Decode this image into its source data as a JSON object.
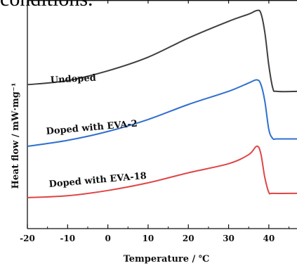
{
  "header_fragment": "conditions.",
  "chart_data": {
    "type": "line",
    "title": "",
    "xlabel": "Temperature / ℃",
    "ylabel": "Heat flow / mW·mg⁻¹",
    "xlim": [
      -20,
      47
    ],
    "x_ticks": [
      -20,
      -10,
      0,
      10,
      20,
      30,
      40
    ],
    "x_tick_labels": [
      "-20",
      "-10",
      "0",
      "10",
      "20",
      "30",
      "40"
    ],
    "y_ticks_shown": false,
    "grid": false,
    "series": [
      {
        "name": "Undoped",
        "color": "#3f3f3f",
        "points": [
          [
            -20,
            0.4
          ],
          [
            -10,
            0.57
          ],
          [
            0,
            0.98
          ],
          [
            10,
            1.55
          ],
          [
            20,
            2.35
          ],
          [
            30,
            3.05
          ],
          [
            35,
            3.35
          ],
          [
            37,
            3.5
          ],
          [
            38,
            3.4
          ],
          [
            39,
            2.6
          ],
          [
            40,
            1.2
          ],
          [
            41,
            0.25
          ],
          [
            42,
            0.12
          ],
          [
            47,
            0.12
          ]
        ]
      },
      {
        "name": "Doped with EVA-2",
        "color": "#2f6fce",
        "points": [
          [
            -20,
            0.0
          ],
          [
            -10,
            0.25
          ],
          [
            0,
            0.62
          ],
          [
            10,
            1.12
          ],
          [
            20,
            1.75
          ],
          [
            30,
            2.3
          ],
          [
            35,
            2.65
          ],
          [
            37,
            2.78
          ],
          [
            38,
            2.6
          ],
          [
            39,
            1.9
          ],
          [
            40,
            0.7
          ],
          [
            41,
            0.32
          ],
          [
            42,
            0.31
          ],
          [
            47,
            0.31
          ]
        ]
      },
      {
        "name": "Doped with EVA-18",
        "color": "#e04545",
        "points": [
          [
            -20,
            0.0
          ],
          [
            -10,
            0.08
          ],
          [
            0,
            0.3
          ],
          [
            10,
            0.62
          ],
          [
            20,
            1.04
          ],
          [
            30,
            1.42
          ],
          [
            35,
            1.8
          ],
          [
            37,
            2.15
          ],
          [
            38,
            1.85
          ],
          [
            39,
            0.85
          ],
          [
            40,
            0.22
          ],
          [
            41,
            0.18
          ],
          [
            47,
            0.18
          ]
        ]
      }
    ]
  }
}
